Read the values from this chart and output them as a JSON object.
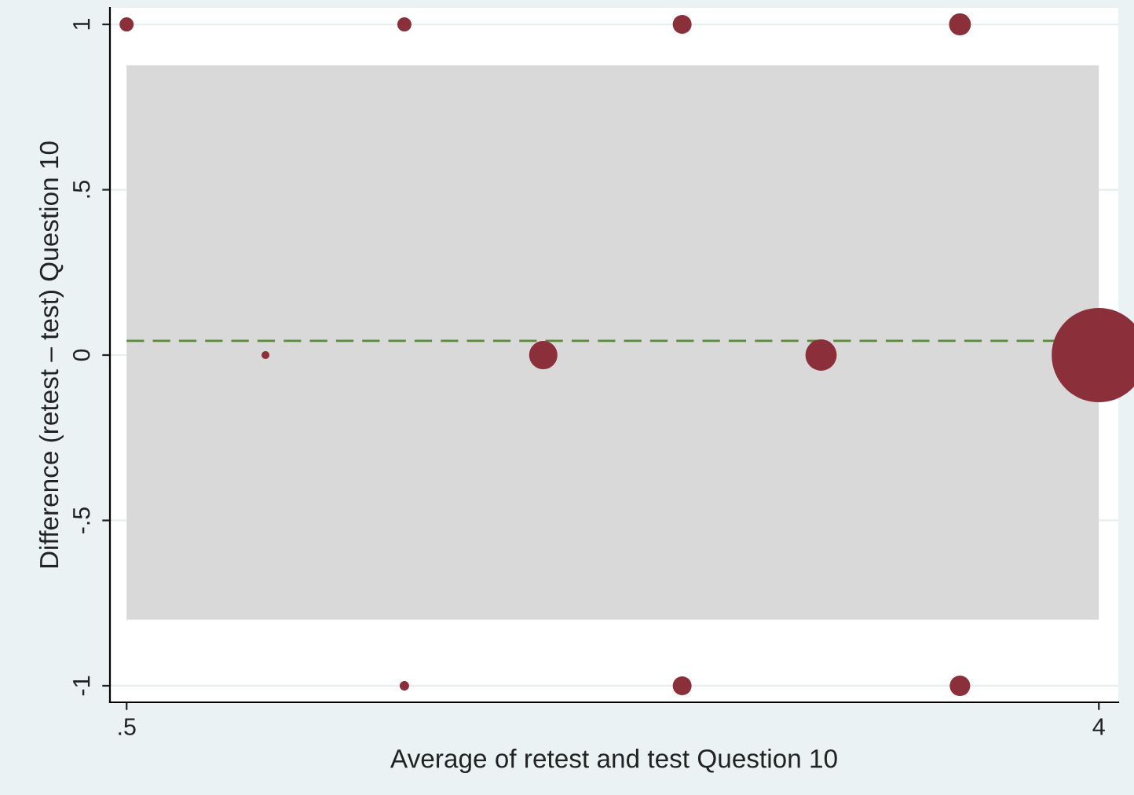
{
  "chart_data": {
    "type": "bubble",
    "xlabel": "Average of retest and test Question 10",
    "ylabel": "Difference (retest – test) Question 10",
    "x": [
      0.5,
      1.5,
      2.5,
      3.5,
      1.0,
      2.0,
      3.0,
      4.0,
      1.5,
      2.5,
      3.5
    ],
    "series": [
      {
        "color": "#8b2f3a",
        "values": [
          1,
          1,
          1,
          1,
          0,
          0,
          0,
          0,
          -1,
          -1,
          -1
        ],
        "sizes": [
          0.0225,
          0.0225,
          0.04,
          0.054,
          0.007,
          0.09,
          0.11,
          1,
          0.01,
          0.04,
          0.047
        ]
      }
    ],
    "xlim": [
      0.44,
      4.07
    ],
    "ylim": [
      -1.05,
      1.05
    ],
    "xticks": [
      {
        "value": 0.5,
        "label": ".5"
      },
      4
    ],
    "yticks": [
      -1,
      {
        "value": -0.5,
        "label": "-.5"
      },
      0,
      {
        "value": 0.5,
        "label": ".5"
      },
      1
    ],
    "ref_lines": [
      {
        "axis": "y",
        "value": 0.043,
        "color": "#5a8a3a",
        "line_style": "dashed"
      }
    ],
    "bands": [
      {
        "axis": "y",
        "from": -0.8,
        "to": 0.876,
        "color": "#d9d9d9"
      }
    ],
    "grid": "y",
    "legend": false
  }
}
